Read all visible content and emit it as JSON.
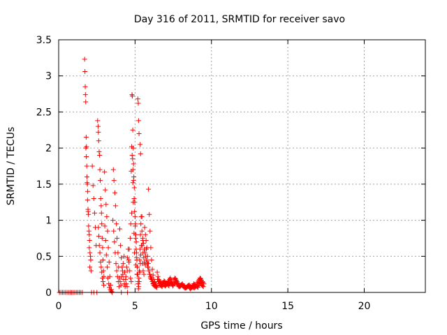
{
  "chart_data": {
    "type": "scatter",
    "title": "Day 316 of 2011, SRMTID for receiver savo",
    "xlabel": "GPS time / hours",
    "ylabel": "SRMTID / TECUs",
    "xlim": [
      0,
      24
    ],
    "ylim": [
      0,
      3.5
    ],
    "xticks": [
      0,
      5,
      10,
      15,
      20
    ],
    "xtick_labels": [
      "0",
      "5",
      "10",
      "15",
      "20"
    ],
    "yticks": [
      0,
      0.5,
      1,
      1.5,
      2,
      2.5,
      3,
      3.5
    ],
    "ytick_labels": [
      "0",
      "0.5",
      "1",
      "1.5",
      "2",
      "2.5",
      "3",
      "3.5"
    ],
    "grid": true,
    "marker": "plus",
    "marker_color": "#ff0000",
    "series": [
      {
        "x": [
          0.05,
          0.15,
          0.25,
          0.35,
          0.45,
          0.55,
          0.65,
          0.75,
          0.85,
          0.95,
          1.05,
          1.15,
          1.25,
          1.35,
          1.45,
          1.55,
          2.15,
          2.3,
          2.5,
          3.5,
          4.1,
          4.5,
          1.7,
          1.72,
          1.74,
          1.75,
          1.77,
          1.8,
          1.82,
          1.85,
          1.88,
          1.9,
          1.92,
          1.95,
          1.98,
          2.0,
          2.02,
          2.05,
          2.08,
          2.1,
          2.12,
          1.78,
          1.81,
          1.84,
          1.86,
          1.89,
          1.93,
          1.96,
          2.0,
          2.04,
          2.2,
          2.25,
          2.3,
          2.35,
          2.4,
          2.45,
          2.55,
          2.58,
          2.6,
          2.62,
          2.65,
          2.68,
          2.7,
          2.72,
          2.75,
          2.78,
          2.8,
          2.82,
          2.85,
          2.88,
          2.9,
          2.93,
          2.96,
          2.6,
          2.63,
          2.66,
          2.7,
          2.74,
          2.78,
          2.82,
          2.86,
          2.9,
          2.95,
          3.0,
          3.05,
          3.1,
          3.15,
          3.2,
          3.25,
          3.3,
          3.35,
          3.4,
          3.45,
          3.02,
          3.08,
          3.12,
          3.18,
          3.22,
          3.28,
          3.32,
          3.38,
          3.42,
          3.48,
          3.55,
          3.6,
          3.65,
          3.7,
          3.75,
          3.8,
          3.85,
          3.9,
          3.95,
          3.58,
          3.62,
          3.68,
          3.72,
          3.78,
          3.82,
          3.88,
          3.92,
          3.98,
          4.0,
          4.05,
          4.1,
          4.15,
          4.2,
          4.25,
          4.3,
          4.35,
          4.4,
          4.45,
          4.5,
          4.55,
          4.6,
          4.65,
          4.7,
          4.75,
          4.02,
          4.08,
          4.12,
          4.18,
          4.22,
          4.28,
          4.32,
          4.38,
          4.42,
          4.48,
          4.52,
          4.58,
          4.62,
          4.68,
          4.72,
          4.78,
          4.8,
          4.82,
          4.85,
          4.88,
          4.9,
          4.92,
          4.95,
          4.98,
          5.0,
          5.02,
          5.05,
          5.08,
          5.1,
          5.12,
          5.15,
          5.18,
          5.2,
          5.22,
          5.25,
          5.28,
          5.3,
          5.32,
          5.35,
          5.38,
          5.4,
          4.81,
          4.86,
          4.9,
          4.94,
          4.97,
          5.01,
          5.04,
          5.07,
          5.11,
          5.14,
          5.17,
          5.21,
          5.24,
          5.27,
          5.31,
          5.34,
          5.37,
          5.41,
          4.75,
          4.78,
          4.84,
          4.86,
          4.88,
          4.93,
          4.96,
          5.06,
          5.13,
          5.18,
          5.21,
          5.23,
          5.26,
          5.33,
          5.36,
          5.45,
          5.5,
          5.45,
          5.5,
          5.55,
          5.6,
          5.65,
          5.7,
          5.75,
          5.8,
          5.85,
          5.9,
          5.95,
          6.0,
          6.05,
          6.1,
          6.15,
          6.2,
          6.25,
          6.3,
          6.35,
          6.4,
          5.47,
          5.52,
          5.57,
          5.62,
          5.67,
          5.72,
          5.77,
          5.82,
          5.87,
          5.92,
          5.97,
          6.02,
          6.07,
          6.12,
          6.17,
          6.22,
          6.27,
          6.32,
          6.37,
          6.42,
          5.48,
          5.53,
          5.58,
          5.63,
          5.68,
          5.73,
          5.78,
          5.83,
          5.88,
          5.93,
          5.98,
          6.03,
          6.08,
          6.13,
          6.18,
          6.23,
          6.28,
          6.33,
          6.45,
          6.5,
          6.55,
          6.6,
          6.65,
          6.7,
          6.75,
          6.8,
          6.85,
          6.9,
          6.95,
          7.0,
          7.05,
          7.1,
          7.15,
          7.2,
          7.25,
          7.3,
          7.35,
          7.4,
          7.45,
          7.5,
          6.47,
          6.52,
          6.57,
          6.62,
          6.67,
          6.72,
          6.77,
          6.82,
          6.87,
          6.92,
          6.97,
          7.02,
          7.07,
          7.12,
          7.17,
          7.22,
          7.27,
          7.32,
          7.37,
          7.42,
          7.47,
          7.55,
          7.6,
          7.65,
          7.7,
          7.75,
          7.8,
          7.85,
          7.9,
          7.95,
          8.0,
          8.05,
          8.1,
          8.15,
          8.2,
          8.25,
          8.3,
          8.35,
          8.4,
          8.45,
          8.5,
          7.57,
          7.62,
          7.67,
          7.72,
          7.77,
          7.82,
          7.87,
          7.92,
          7.97,
          8.02,
          8.07,
          8.12,
          8.17,
          8.22,
          8.27,
          8.32,
          8.37,
          8.42,
          8.47,
          8.55,
          8.6,
          8.65,
          8.7,
          8.75,
          8.8,
          8.85,
          8.9,
          8.95,
          9.0,
          9.05,
          9.1,
          9.15,
          9.2,
          9.25,
          9.3,
          9.35,
          9.4,
          9.45,
          9.5,
          8.57,
          8.62,
          8.67,
          8.72,
          8.77,
          8.82,
          8.87,
          8.92,
          8.97,
          9.02,
          9.07,
          9.12,
          9.17,
          9.22,
          9.27,
          9.32,
          9.37,
          9.42,
          9.47
        ],
        "y": [
          0,
          0,
          0,
          0,
          0,
          0,
          0,
          0,
          0,
          0,
          0,
          0,
          0,
          0,
          0,
          0,
          0,
          0,
          0,
          0,
          0,
          0,
          3.23,
          3.06,
          2.85,
          2.74,
          2.64,
          2.15,
          2.02,
          1.6,
          1.5,
          1.4,
          1.15,
          1.08,
          0.85,
          0.8,
          0.72,
          0.55,
          0.5,
          0.45,
          0.3,
          2.0,
          1.88,
          1.75,
          1.52,
          1.28,
          1.12,
          0.92,
          0.62,
          0.35,
          1.75,
          1.48,
          1.3,
          1.1,
          0.9,
          0.65,
          2.38,
          2.3,
          2.22,
          2.1,
          1.95,
          1.9,
          1.7,
          1.55,
          1.3,
          1.2,
          1.1,
          0.95,
          0.75,
          0.62,
          0.45,
          0.3,
          0.22,
          0.9,
          0.78,
          0.65,
          0.55,
          0.42,
          0.35,
          0.28,
          0.2,
          0.15,
          0.1,
          1.67,
          1.42,
          1.22,
          1.05,
          0.85,
          0.62,
          0.42,
          0.22,
          0.1,
          0.04,
          0.92,
          0.72,
          0.52,
          0.35,
          0.2,
          0.12,
          0.07,
          0.04,
          0.02,
          0.01,
          1.0,
          0.85,
          0.7,
          0.55,
          0.4,
          0.3,
          0.22,
          0.15,
          0.08,
          1.7,
          1.55,
          1.38,
          1.2,
          0.95,
          0.75,
          0.55,
          0.35,
          0.2,
          0.88,
          0.65,
          0.48,
          0.35,
          0.25,
          0.18,
          0.12,
          0.08,
          0.22,
          0.35,
          0.48,
          0.6,
          0.42,
          0.3,
          0.2,
          0.15,
          0.15,
          0.1,
          0.22,
          0.3,
          0.4,
          0.5,
          0.28,
          0.18,
          0.12,
          0.08,
          0.3,
          0.45,
          0.6,
          0.75,
          0.95,
          1.1,
          2.74,
          2.72,
          2.25,
          2.0,
          1.78,
          1.6,
          1.45,
          1.25,
          1.05,
          0.95,
          0.8,
          0.7,
          0.55,
          0.45,
          0.35,
          0.25,
          0.12,
          0.05,
          0.2,
          0.3,
          0.45,
          0.6,
          0.8,
          0.95,
          1.05,
          1.9,
          1.7,
          1.55,
          1.3,
          1.12,
          0.92,
          0.75,
          0.6,
          0.48,
          0.35,
          0.25,
          0.15,
          0.08,
          0.15,
          0.28,
          0.4,
          0.52,
          0.65,
          1.68,
          2.02,
          1.85,
          1.52,
          1.25,
          0.82,
          0.55,
          0.38,
          0.25,
          2.68,
          2.62,
          2.38,
          2.2,
          2.05,
          1.92,
          1.05,
          0.72,
          0.85,
          0.75,
          0.68,
          0.6,
          0.55,
          0.5,
          0.45,
          0.4,
          0.35,
          0.3,
          0.25,
          0.22,
          0.2,
          0.18,
          0.15,
          0.13,
          0.12,
          0.1,
          0.1,
          0.09,
          0.65,
          0.55,
          0.48,
          0.42,
          0.38,
          0.72,
          0.62,
          0.5,
          0.4,
          0.3,
          0.25,
          0.2,
          0.18,
          0.15,
          0.12,
          0.1,
          0.09,
          0.08,
          0.08,
          0.07,
          0.4,
          0.3,
          0.25,
          0.9,
          0.8,
          0.6,
          0.42,
          0.35,
          1.43,
          1.08,
          0.85,
          0.62,
          0.45,
          0.32,
          0.24,
          0.18,
          0.14,
          0.12,
          0.28,
          0.22,
          0.18,
          0.16,
          0.14,
          0.12,
          0.12,
          0.13,
          0.14,
          0.16,
          0.15,
          0.13,
          0.12,
          0.12,
          0.14,
          0.16,
          0.18,
          0.2,
          0.18,
          0.16,
          0.12,
          0.1,
          0.18,
          0.15,
          0.12,
          0.1,
          0.1,
          0.09,
          0.08,
          0.1,
          0.12,
          0.1,
          0.09,
          0.1,
          0.11,
          0.12,
          0.1,
          0.09,
          0.12,
          0.14,
          0.13,
          0.11,
          0.09,
          0.18,
          0.2,
          0.19,
          0.17,
          0.15,
          0.13,
          0.11,
          0.1,
          0.09,
          0.1,
          0.11,
          0.12,
          0.1,
          0.09,
          0.08,
          0.07,
          0.07,
          0.08,
          0.09,
          0.1,
          0.12,
          0.14,
          0.15,
          0.13,
          0.11,
          0.09,
          0.08,
          0.08,
          0.09,
          0.1,
          0.11,
          0.09,
          0.08,
          0.07,
          0.06,
          0.06,
          0.07,
          0.08,
          0.09,
          0.1,
          0.09,
          0.08,
          0.07,
          0.08,
          0.1,
          0.12,
          0.11,
          0.1,
          0.09,
          0.12,
          0.14,
          0.16,
          0.18,
          0.2,
          0.19,
          0.17,
          0.15,
          0.14,
          0.12,
          0.06,
          0.05,
          0.06,
          0.07,
          0.08,
          0.07,
          0.06,
          0.07,
          0.08,
          0.09,
          0.08,
          0.07,
          0.1,
          0.12,
          0.13,
          0.12,
          0.1,
          0.09,
          0.08
        ]
      }
    ]
  }
}
